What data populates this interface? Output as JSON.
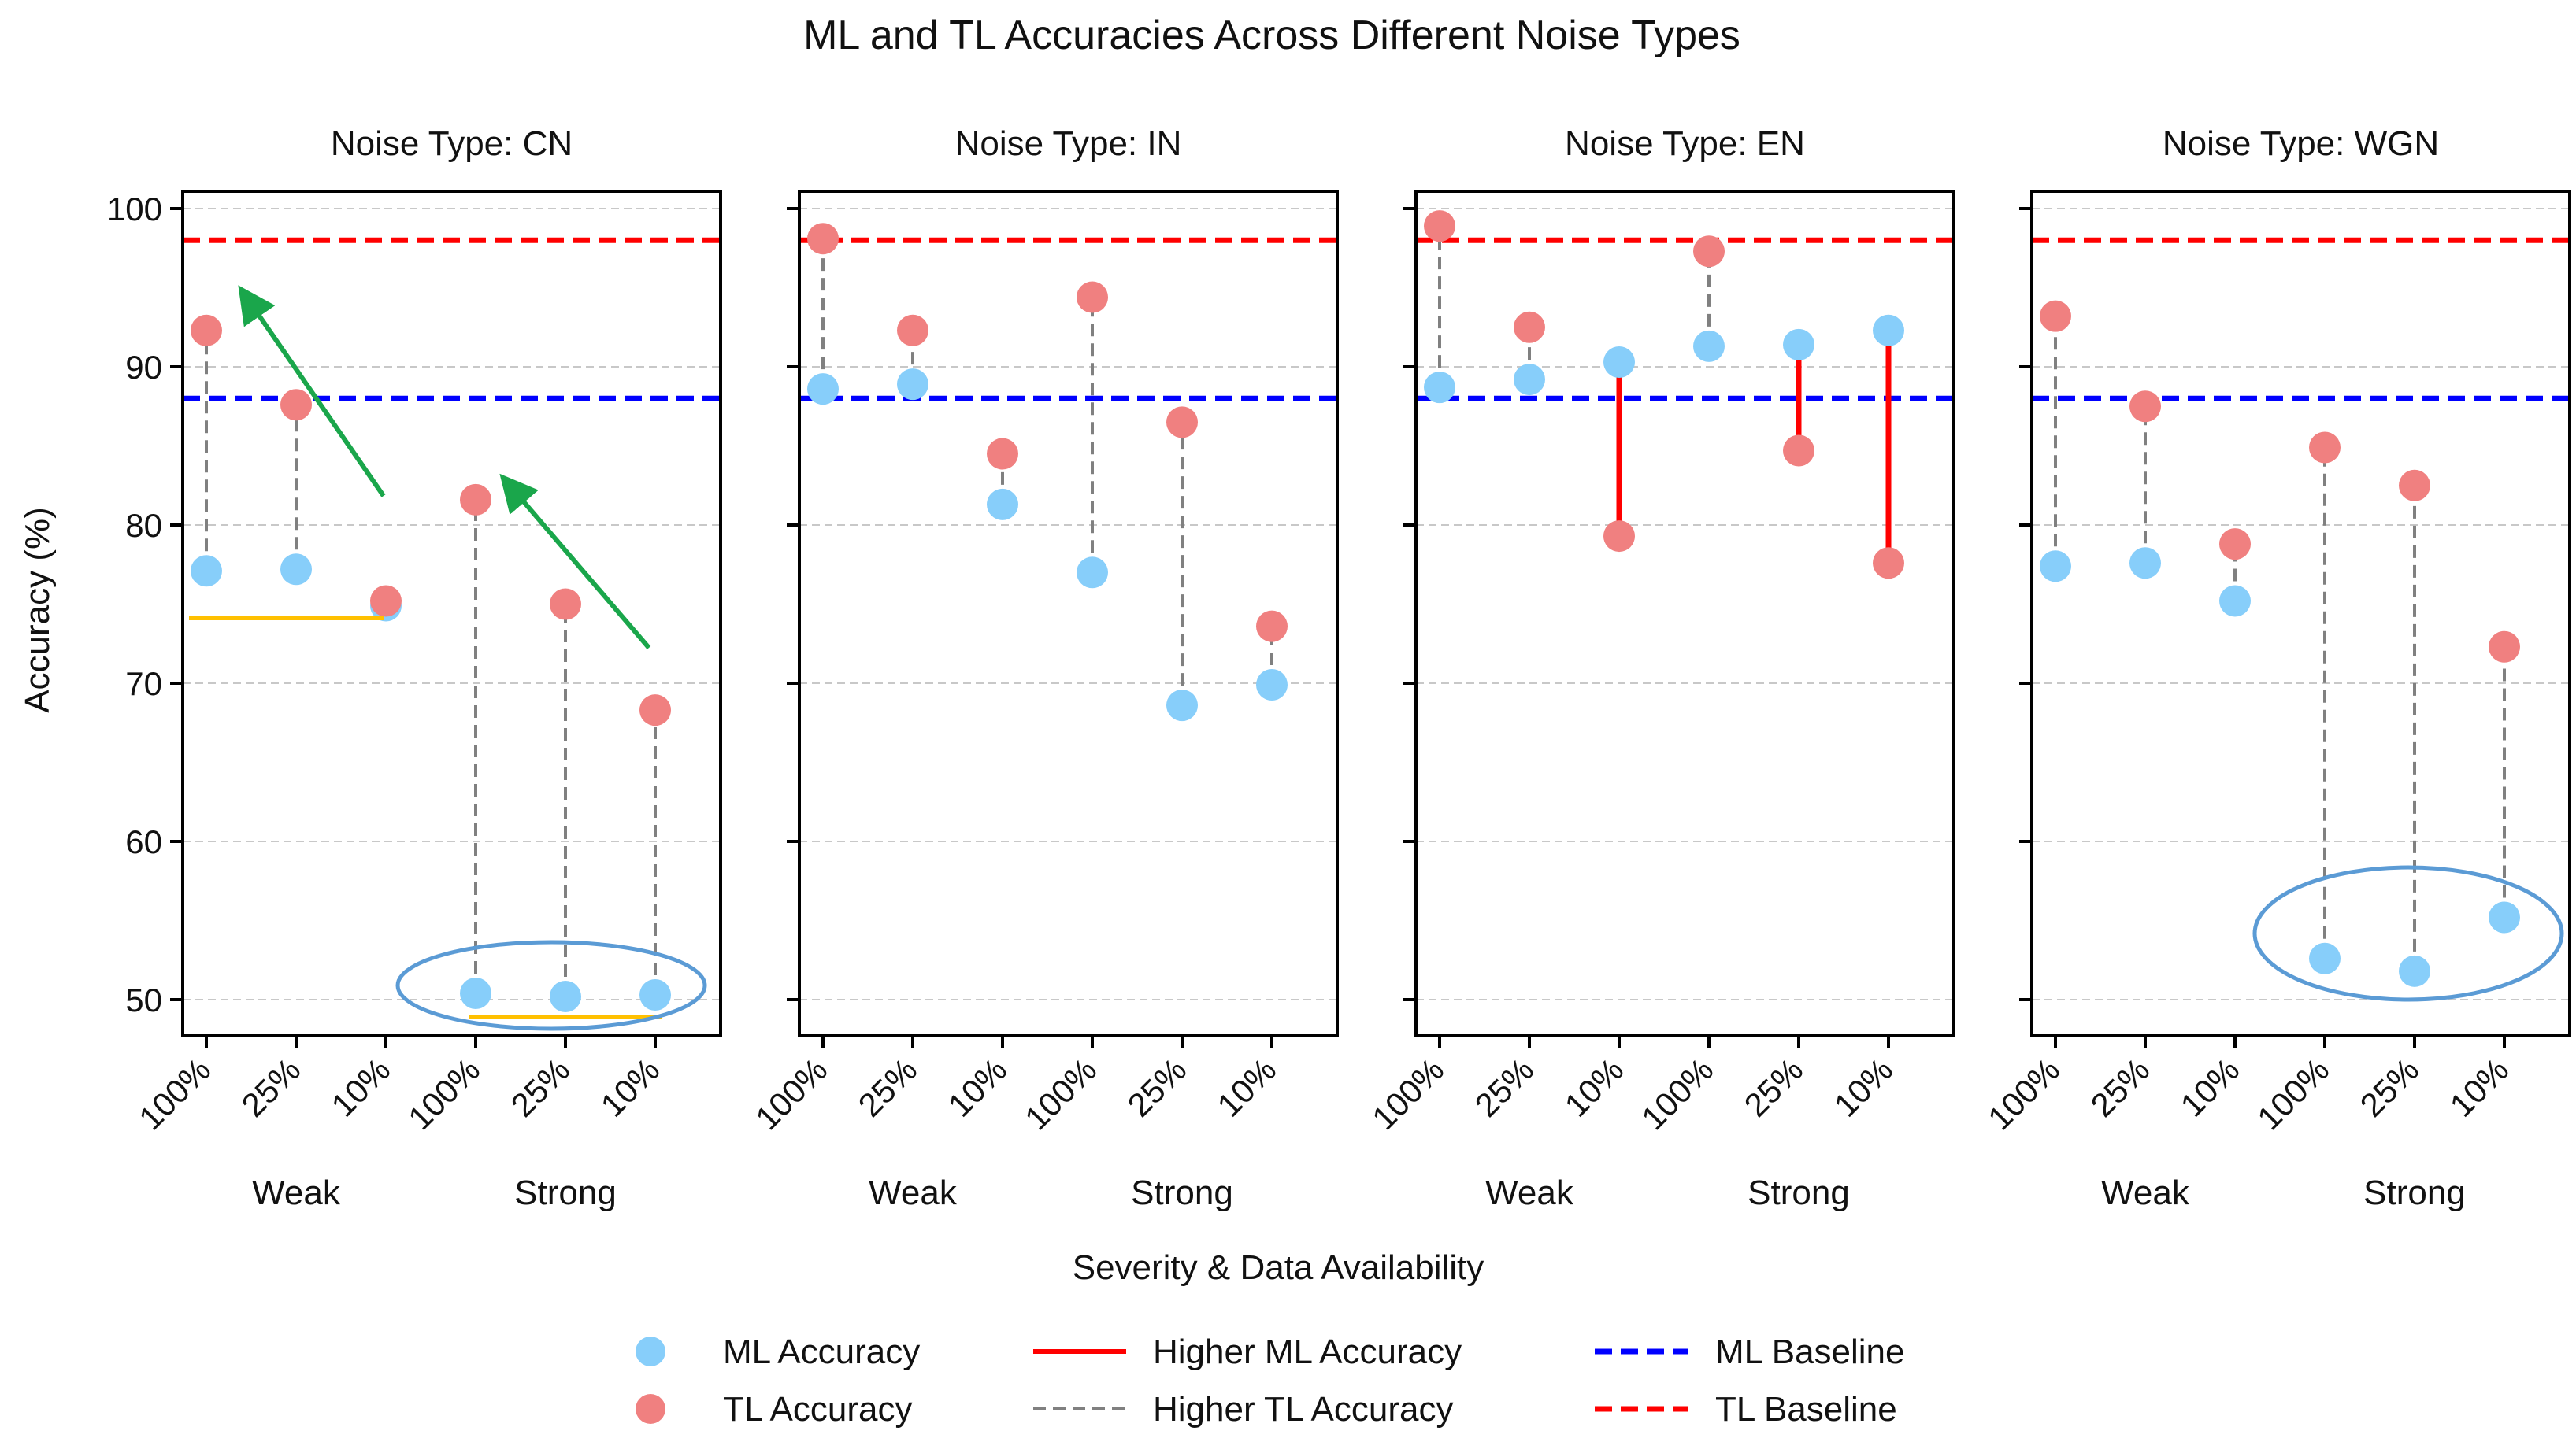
{
  "title": "ML and TL Accuracies Across Different Noise Types",
  "ylabel": "Accuracy (%)",
  "xlabel": "Severity & Data Availability",
  "legend": {
    "ml_accuracy": "ML Accuracy",
    "tl_accuracy": "TL Accuracy",
    "higher_ml": "Higher ML Accuracy",
    "higher_tl": "Higher TL Accuracy",
    "ml_baseline": "ML Baseline",
    "tl_baseline": "TL Baseline"
  },
  "colors": {
    "ml_point": "#87cefa",
    "tl_point": "#f08080",
    "higher_ml_line": "#ff0000",
    "higher_tl_line": "#808080",
    "ml_baseline": "#0000ff",
    "tl_baseline": "#ff0000",
    "grid": "#c8c8c8",
    "annotation_arrow": "#1aa64b",
    "annotation_line": "#ffc000",
    "annotation_ellipse": "#5b9bd5"
  },
  "chart_data": {
    "type": "scatter",
    "categories": [
      "100%",
      "25%",
      "10%",
      "100%",
      "25%",
      "10%"
    ],
    "groups": [
      "Weak",
      "Strong"
    ],
    "ylim": [
      48,
      101
    ],
    "yticks": [
      50,
      60,
      70,
      80,
      90,
      100
    ],
    "baselines": {
      "ml": 88,
      "tl": 98
    },
    "panels": [
      {
        "title": "Noise Type: CN",
        "ml": [
          77.1,
          77.2,
          74.9,
          50.4,
          50.2,
          50.3
        ],
        "tl": [
          92.3,
          87.6,
          75.2,
          81.6,
          75.0,
          68.3
        ]
      },
      {
        "title": "Noise Type: IN",
        "ml": [
          88.6,
          88.9,
          81.3,
          77.0,
          68.6,
          69.9
        ],
        "tl": [
          98.1,
          92.3,
          84.5,
          94.4,
          86.5,
          73.6
        ]
      },
      {
        "title": "Noise Type: EN",
        "ml": [
          88.7,
          89.2,
          90.3,
          91.3,
          91.4,
          92.3
        ],
        "tl": [
          98.9,
          92.5,
          79.3,
          97.3,
          84.7,
          77.6
        ]
      },
      {
        "title": "Noise Type: WGN",
        "ml": [
          77.4,
          77.6,
          75.2,
          52.6,
          51.8,
          55.2
        ],
        "tl": [
          93.2,
          87.5,
          78.8,
          84.9,
          82.5,
          72.3
        ]
      }
    ]
  }
}
